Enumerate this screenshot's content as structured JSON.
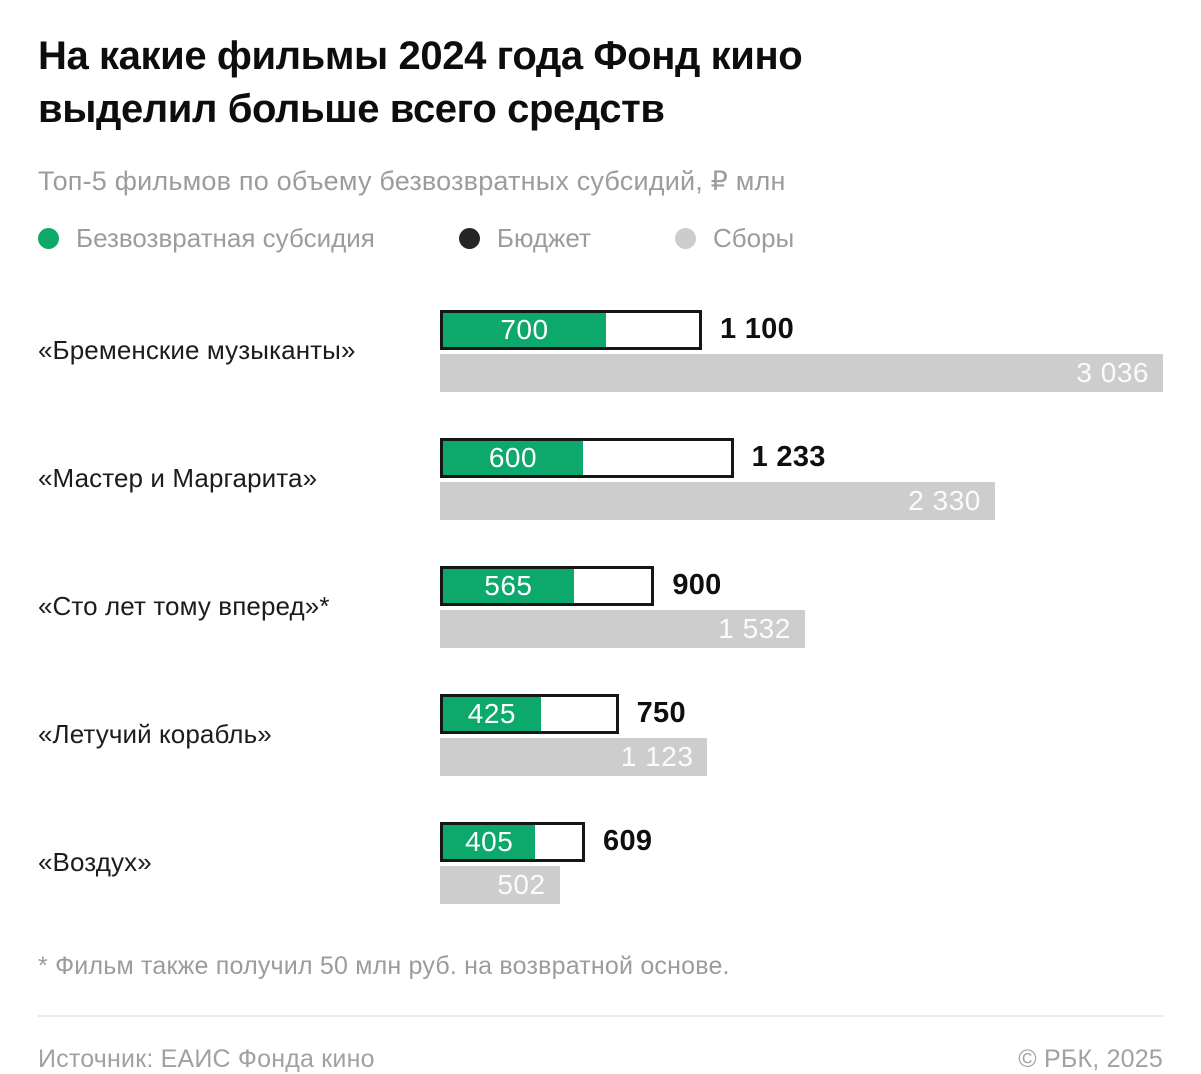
{
  "header": {
    "title_line1": "На какие фильмы 2024 года Фонд кино",
    "title_line2": "выделил больше всего средств",
    "subtitle": "Топ-5 фильмов по объему безвозвратных субсидий, ₽ млн"
  },
  "legend": {
    "items": [
      {
        "name": "subsidy",
        "label": "Безвозвратная субсидия",
        "color": "#0da86b"
      },
      {
        "name": "budget",
        "label": "Бюджет",
        "color": "#262626"
      },
      {
        "name": "box-office",
        "label": "Сборы",
        "color": "#cccccc"
      }
    ]
  },
  "chart_data": {
    "type": "bar",
    "orientation": "horizontal",
    "title": "На какие фильмы 2024 года Фонд кино выделил больше всего средств",
    "unit": "₽ млн",
    "xmax": 3036,
    "grid": false,
    "legend_position": "top",
    "categories": [
      "«Бременские музыканты»",
      "«Мастер и Маргарита»",
      "«Сто лет тому вперед»*",
      "«Летучий корабль»",
      "«Воздух»"
    ],
    "series": [
      {
        "name": "Безвозвратная субсидия",
        "color": "#0da86b",
        "values": [
          700,
          600,
          565,
          425,
          405
        ],
        "labels": [
          "700",
          "600",
          "565",
          "425",
          "405"
        ]
      },
      {
        "name": "Бюджет",
        "fill": "#ffffff",
        "border": "#161616",
        "values": [
          1100,
          1233,
          900,
          750,
          609
        ],
        "labels": [
          "1 100",
          "1 233",
          "900",
          "750",
          "609"
        ]
      },
      {
        "name": "Сборы",
        "color": "#cdcdcd",
        "values": [
          3036,
          2330,
          1532,
          1123,
          502
        ],
        "labels": [
          "3 036",
          "2 330",
          "1 532",
          "1 123",
          "502"
        ]
      }
    ]
  },
  "footnote": "* Фильм также получил 50 млн руб. на возвратной основе.",
  "footer": {
    "source": "Источник: ЕАИС Фонда кино",
    "copyright": "© РБК, 2025"
  }
}
